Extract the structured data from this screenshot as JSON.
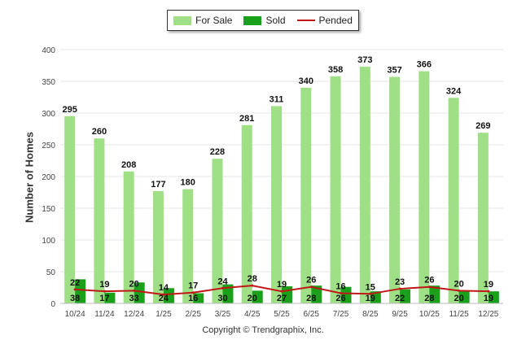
{
  "legend": {
    "for_sale_label": "For Sale",
    "sold_label": "Sold",
    "pended_label": "Pended"
  },
  "colors": {
    "for_sale": "#9fe087",
    "sold": "#1aa01a",
    "pended": "#c01818",
    "grid": "#e6e6e6",
    "axis_text": "#444444"
  },
  "footer": {
    "copyright": "Copyright © Trendgraphix, Inc."
  },
  "chart_data": {
    "type": "bar",
    "ylabel": "Number of Homes",
    "ylim": [
      0,
      400
    ],
    "yticks": [
      0,
      50,
      100,
      150,
      200,
      250,
      300,
      350,
      400
    ],
    "grid": true,
    "legend_position": "top-center",
    "categories": [
      "10/24",
      "11/24",
      "12/24",
      "1/25",
      "2/25",
      "3/25",
      "4/25",
      "5/25",
      "6/25",
      "7/25",
      "8/25",
      "9/25",
      "10/25",
      "11/25",
      "12/25"
    ],
    "series": [
      {
        "name": "For Sale",
        "kind": "bar",
        "values": [
          295,
          260,
          208,
          177,
          180,
          228,
          281,
          311,
          340,
          358,
          373,
          357,
          366,
          324,
          269
        ]
      },
      {
        "name": "Sold",
        "kind": "bar",
        "values": [
          38,
          17,
          33,
          24,
          16,
          30,
          20,
          27,
          28,
          26,
          19,
          22,
          28,
          20,
          19
        ]
      },
      {
        "name": "Pended",
        "kind": "line",
        "values": [
          22,
          19,
          20,
          14,
          17,
          24,
          28,
          19,
          26,
          16,
          15,
          23,
          26,
          20,
          19
        ]
      }
    ]
  }
}
